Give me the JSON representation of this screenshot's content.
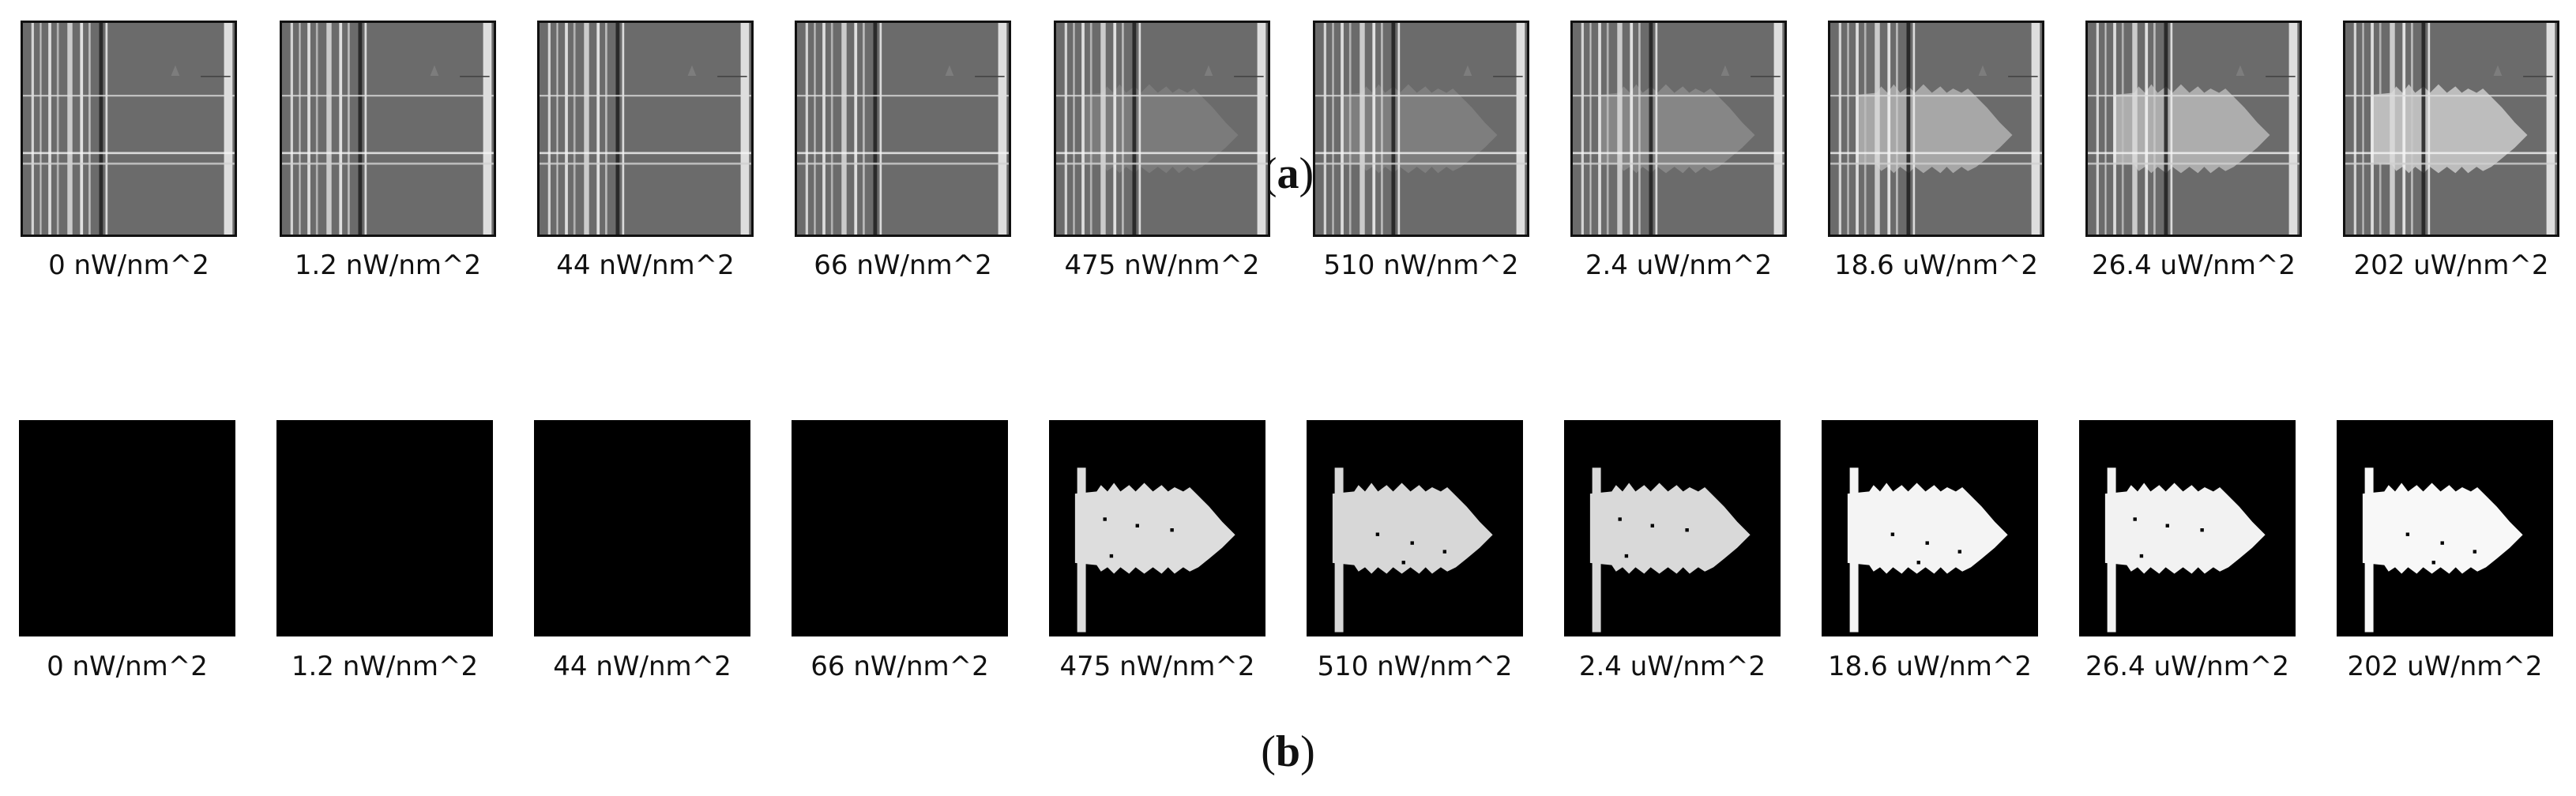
{
  "panel_a": {
    "caption_open": "(",
    "caption_letter": "a",
    "caption_close": ")",
    "labels": [
      "0 nW/nm^2",
      "1.2 nW/nm^2",
      "44 nW/nm^2",
      "66 nW/nm^2",
      "475 nW/nm^2",
      "510 nW/nm^2",
      "2.4 uW/nm^2",
      "18.6 uW/nm^2",
      "26.4 uW/nm^2",
      "202 uW/nm^2"
    ],
    "plume_visibility": [
      0,
      0,
      0,
      0,
      0.15,
      0.18,
      0.25,
      0.55,
      0.6,
      0.75
    ]
  },
  "panel_b": {
    "caption_open": "(",
    "caption_letter": "b",
    "caption_close": ")",
    "labels": [
      "0 nW/nm^2",
      "1.2 nW/nm^2",
      "44 nW/nm^2",
      "66 nW/nm^2",
      "475 nW/nm^2",
      "510 nW/nm^2",
      "2.4 uW/nm^2",
      "18.6 uW/nm^2",
      "26.4 uW/nm^2",
      "202 uW/nm^2"
    ],
    "mask_brightness": [
      0,
      0,
      0,
      0,
      0.75,
      0.7,
      0.72,
      0.92,
      0.9,
      0.95
    ]
  },
  "colors": {
    "raw_background": "#6b6b6b",
    "mask_background": "#000000",
    "plume": "#d8d8d8"
  }
}
